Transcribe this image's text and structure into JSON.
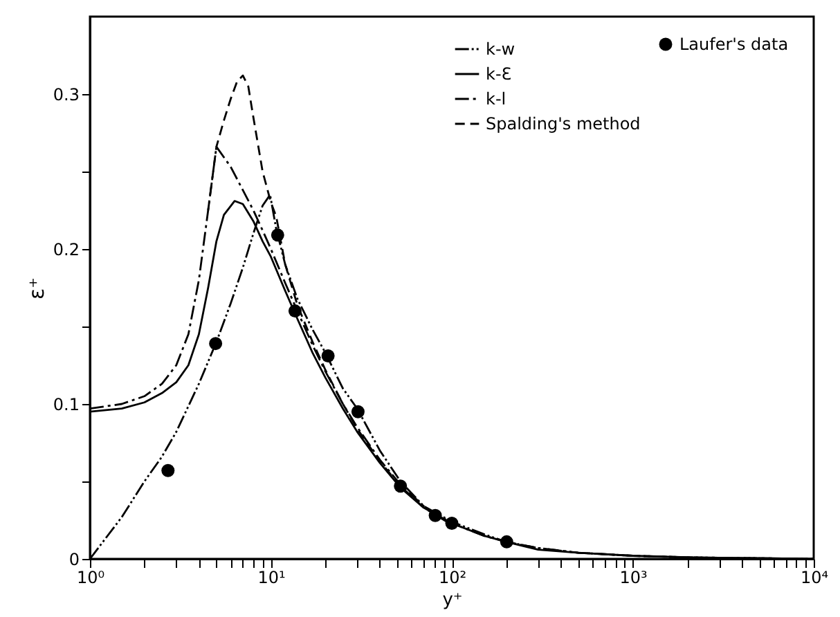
{
  "chart_data": {
    "type": "line",
    "xlabel": "y⁺",
    "ylabel": "ε⁺",
    "log": "x",
    "legend": "top right",
    "xlim": [
      1,
      10000
    ],
    "ylim": [
      0,
      0.35
    ],
    "xticks": [
      {
        "value": 1,
        "label": "10⁰"
      },
      {
        "value": 2,
        "label": null
      },
      {
        "value": 3,
        "label": null
      },
      {
        "value": 4,
        "label": null
      },
      {
        "value": 5,
        "label": null
      },
      {
        "value": 6,
        "label": null
      },
      {
        "value": 7,
        "label": null
      },
      {
        "value": 8,
        "label": null
      },
      {
        "value": 9,
        "label": null
      },
      {
        "value": 10,
        "label": "10¹"
      },
      {
        "value": 20,
        "label": null
      },
      {
        "value": 30,
        "label": null
      },
      {
        "value": 40,
        "label": null
      },
      {
        "value": 50,
        "label": null
      },
      {
        "value": 60,
        "label": null
      },
      {
        "value": 70,
        "label": null
      },
      {
        "value": 80,
        "label": null
      },
      {
        "value": 90,
        "label": null
      },
      {
        "value": 100,
        "label": "10²"
      },
      {
        "value": 200,
        "label": null
      },
      {
        "value": 300,
        "label": null
      },
      {
        "value": 400,
        "label": null
      },
      {
        "value": 500,
        "label": null
      },
      {
        "value": 600,
        "label": null
      },
      {
        "value": 700,
        "label": null
      },
      {
        "value": 800,
        "label": null
      },
      {
        "value": 900,
        "label": null
      },
      {
        "value": 1000,
        "label": "10³"
      },
      {
        "value": 2000,
        "label": null
      },
      {
        "value": 3000,
        "label": null
      },
      {
        "value": 4000,
        "label": null
      },
      {
        "value": 5000,
        "label": null
      },
      {
        "value": 6000,
        "label": null
      },
      {
        "value": 7000,
        "label": null
      },
      {
        "value": 8000,
        "label": null
      },
      {
        "value": 9000,
        "label": null
      },
      {
        "value": 10000,
        "label": "10⁴"
      }
    ],
    "yticks": [
      0,
      {
        "value": 0.05,
        "label": null
      },
      0.1,
      {
        "value": 0.15,
        "label": null
      },
      0.2,
      {
        "value": 0.25,
        "label": null
      },
      0.3
    ],
    "series": [
      {
        "name": "k-w",
        "color": "#000000",
        "line_style": "dashdotdot",
        "x": [
          1,
          1.5,
          2,
          2.5,
          3,
          4,
          5,
          6,
          7,
          8,
          9,
          9.9,
          10.7,
          12,
          14,
          17,
          20,
          25,
          30,
          40,
          52,
          70,
          100,
          150,
          200,
          300,
          500,
          1000,
          2000,
          10000
        ],
        "values": [
          0,
          0.027,
          0.05,
          0.066,
          0.082,
          0.113,
          0.14,
          0.165,
          0.188,
          0.21,
          0.228,
          0.235,
          0.213,
          0.19,
          0.168,
          0.148,
          0.133,
          0.11,
          0.097,
          0.07,
          0.05,
          0.034,
          0.024,
          0.016,
          0.011,
          0.007,
          0.004,
          0.002,
          0.001,
          0
        ]
      },
      {
        "name": "k-Ɛ",
        "color": "#000000",
        "line_style": "solid",
        "x": [
          1,
          1.5,
          2,
          2.5,
          3,
          3.5,
          4,
          4.5,
          5,
          5.5,
          6.3,
          7,
          8,
          9,
          10,
          12,
          14,
          17,
          20,
          25,
          30,
          40,
          52,
          70,
          100,
          150,
          200,
          300,
          500,
          1000,
          2000,
          10000
        ],
        "values": [
          0.095,
          0.097,
          0.101,
          0.107,
          0.114,
          0.125,
          0.145,
          0.175,
          0.205,
          0.222,
          0.231,
          0.229,
          0.218,
          0.205,
          0.195,
          0.173,
          0.155,
          0.133,
          0.117,
          0.097,
          0.082,
          0.062,
          0.046,
          0.033,
          0.023,
          0.015,
          0.011,
          0.006,
          0.004,
          0.002,
          0.001,
          0
        ]
      },
      {
        "name": "k-l",
        "color": "#000000",
        "line_style": "dashdot",
        "x": [
          1,
          1.5,
          2,
          2.5,
          3,
          3.5,
          4,
          4.5,
          5,
          6,
          7,
          8,
          9,
          10,
          12,
          14,
          17,
          20,
          25,
          30,
          40,
          52,
          70,
          100,
          150,
          200,
          300,
          500,
          1000,
          2000,
          10000
        ],
        "values": [
          0.097,
          0.1,
          0.105,
          0.113,
          0.125,
          0.145,
          0.18,
          0.225,
          0.266,
          0.253,
          0.238,
          0.225,
          0.212,
          0.2,
          0.178,
          0.16,
          0.138,
          0.121,
          0.1,
          0.085,
          0.064,
          0.048,
          0.034,
          0.023,
          0.015,
          0.011,
          0.007,
          0.004,
          0.002,
          0.001,
          0
        ]
      },
      {
        "name": "Spalding's  method",
        "color": "#000000",
        "line_style": "dashed",
        "x": [
          4.5,
          5,
          5.5,
          6,
          6.5,
          7,
          7.5,
          8,
          9,
          10,
          10.7,
          12,
          14,
          17,
          20,
          25,
          30,
          40,
          52,
          70,
          100
        ],
        "values": [
          0.225,
          0.266,
          0.283,
          0.297,
          0.308,
          0.312,
          0.305,
          0.285,
          0.25,
          0.23,
          0.221,
          0.19,
          0.164,
          0.14,
          0.122,
          0.1,
          0.084,
          0.063,
          0.047,
          0.033,
          0.022
        ]
      },
      {
        "name": "Laufer's  data",
        "type": "scatter",
        "color": "#000000",
        "marker": "circle",
        "x": [
          2.7,
          4.95,
          10.9,
          13.6,
          20.7,
          30.3,
          52,
          81,
          100,
          201
        ],
        "values": [
          0.057,
          0.139,
          0.209,
          0.16,
          0.131,
          0.095,
          0.047,
          0.028,
          0.023,
          0.011
        ]
      }
    ]
  }
}
